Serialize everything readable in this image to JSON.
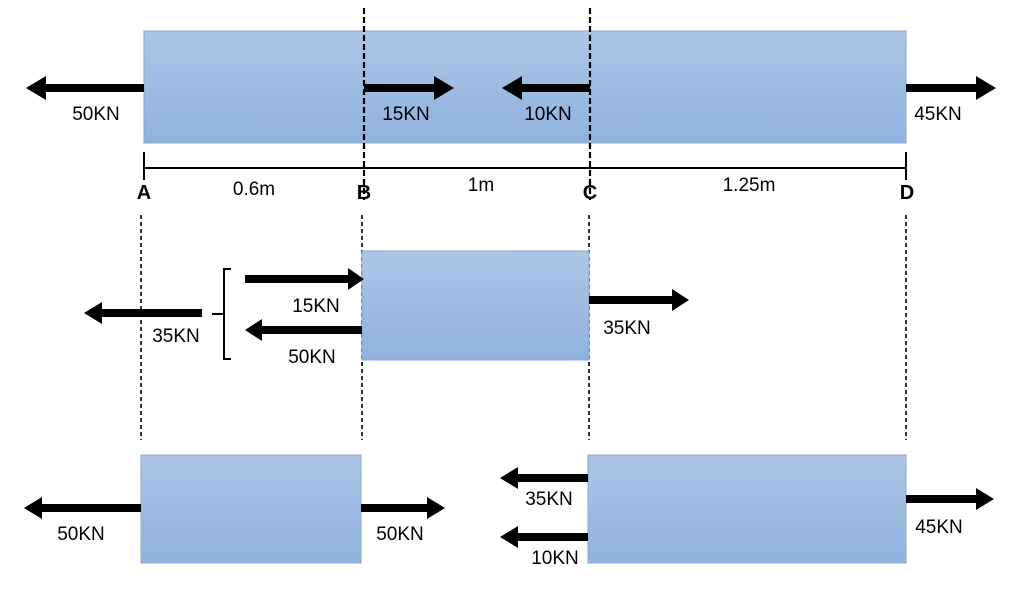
{
  "points": {
    "a": "A",
    "b": "B",
    "c": "C",
    "d": "D"
  },
  "lengths": {
    "ab": "0.6m",
    "bc": "1m",
    "cd": "1.25m"
  },
  "top": {
    "left_force": "50KN",
    "b_force": "15KN",
    "c_force": "10KN",
    "right_force": "45KN"
  },
  "middle": {
    "resultant": "35KN",
    "upper_force": "15KN",
    "lower_force": "50KN",
    "right_force": "35KN"
  },
  "bottom_left": {
    "left_force": "50KN",
    "right_force": "50KN"
  },
  "bottom_right": {
    "upper_force": "35KN",
    "lower_force": "10KN",
    "right_force": "45KN"
  },
  "colors": {
    "bar_top": "#adc6e6",
    "bar_bottom": "#8fb2de",
    "bar_edge": "#8aa8cc",
    "ink": "#000000"
  }
}
